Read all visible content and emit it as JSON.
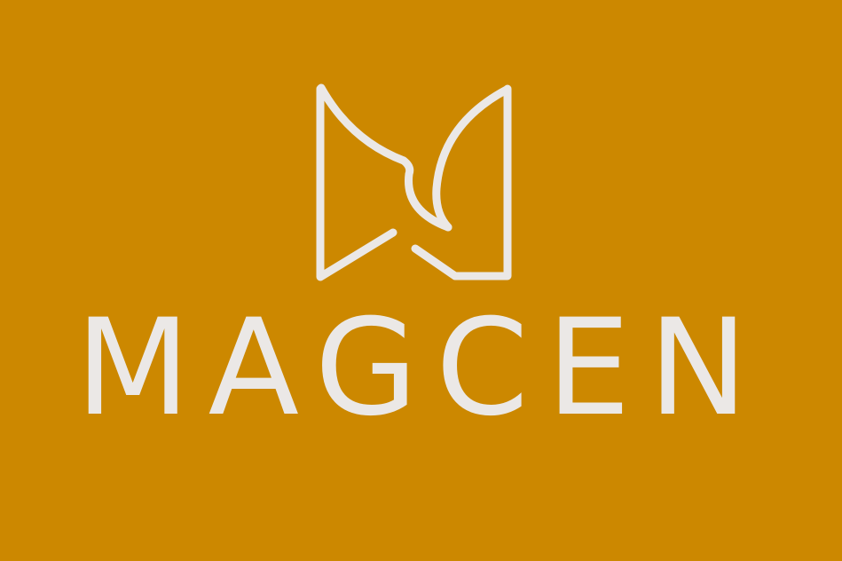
{
  "logo": {
    "wordmark": "MAGCEN"
  }
}
